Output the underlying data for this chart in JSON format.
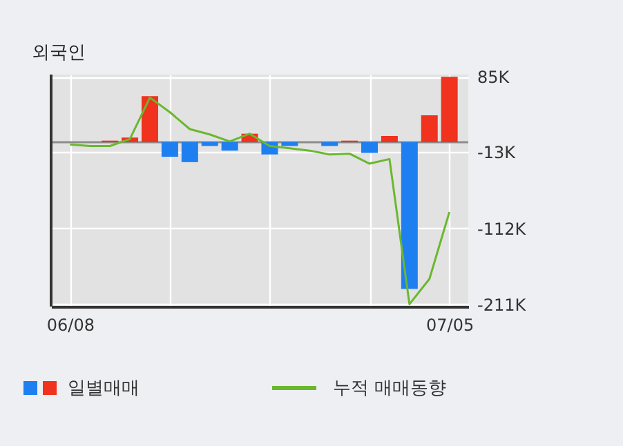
{
  "chart_data": {
    "type": "bar",
    "title": "외국인",
    "categories": [
      "06/08",
      null,
      null,
      null,
      null,
      null,
      null,
      null,
      null,
      null,
      null,
      null,
      null,
      null,
      null,
      null,
      null,
      null,
      null,
      "07/05"
    ],
    "series": [
      {
        "name": "일별매매",
        "colors": [
          "#1e7ff0",
          "#1e7ff0",
          "#f0321e",
          "#f0321e",
          "#f0321e",
          "#1e7ff0",
          "#1e7ff0",
          "#1e7ff0",
          "#1e7ff0",
          "#f0321e",
          "#1e7ff0",
          "#1e7ff0",
          "#f0321e",
          "#1e7ff0",
          "#f0321e",
          "#1e7ff0",
          "#f0321e",
          "#1e7ff0",
          "#f0321e",
          "#f0321e"
        ],
        "values": [
          null,
          null,
          2,
          6,
          60,
          -19,
          -26,
          -5,
          -11,
          11,
          -16,
          -5,
          0,
          -5,
          2,
          -14,
          8,
          -191,
          35,
          85
        ]
      },
      {
        "name": "누적 매매동향",
        "type": "line",
        "color": "#6ab82e",
        "values": [
          -3,
          -5,
          -5,
          4,
          58,
          39,
          17,
          10,
          1,
          11,
          -5,
          -8,
          -11,
          -16,
          -15,
          -28,
          -22,
          -211,
          -178,
          -91
        ]
      }
    ],
    "ylim": [
      -214,
      88
    ],
    "yticks": [
      {
        "value": 85,
        "label": "85K"
      },
      {
        "value": -13,
        "label": "-13K"
      },
      {
        "value": -112,
        "label": "-112K"
      },
      {
        "value": -211,
        "label": "-211K"
      }
    ],
    "ref_lines": [
      {
        "axis": "y",
        "value": 0,
        "color": "#8c8c8c"
      }
    ],
    "grid": true,
    "legend": "bottom"
  }
}
